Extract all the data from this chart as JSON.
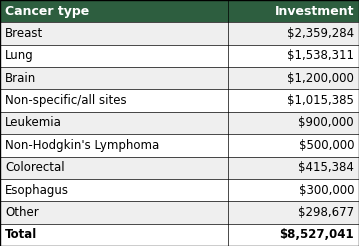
{
  "header": [
    "Cancer type",
    "Investment"
  ],
  "rows": [
    [
      "Breast",
      "$2,359,284"
    ],
    [
      "Lung",
      "$1,538,311"
    ],
    [
      "Brain",
      "$1,200,000"
    ],
    [
      "Non-specific/all sites",
      "$1,015,385"
    ],
    [
      "Leukemia",
      "$900,000"
    ],
    [
      "Non-Hodgkin's Lymphoma",
      "$500,000"
    ],
    [
      "Colorectal",
      "$415,384"
    ],
    [
      "Esophagus",
      "$300,000"
    ],
    [
      "Other",
      "$298,677"
    ],
    [
      "Total",
      "$8,527,041"
    ]
  ],
  "header_bg": "#2d5e3f",
  "header_text_color": "#ffffff",
  "row_bg_odd": "#efefef",
  "row_bg_even": "#ffffff",
  "border_color": "#000000",
  "font_size": 8.5,
  "header_font_size": 9.0,
  "col_split": 0.635
}
